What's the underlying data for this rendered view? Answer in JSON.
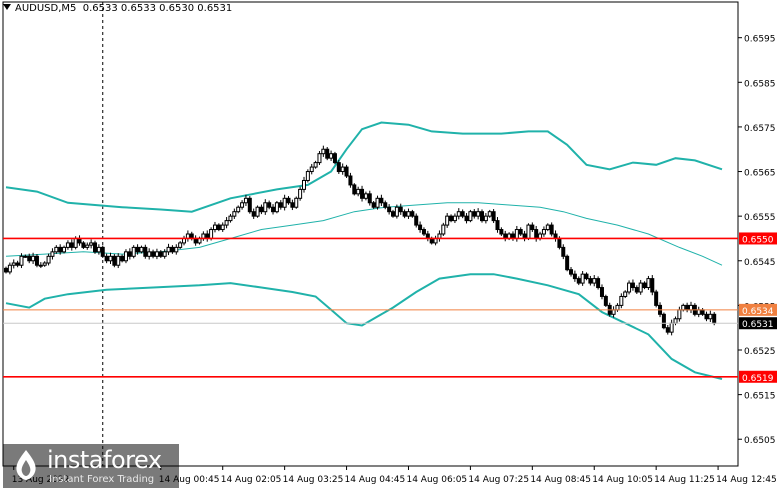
{
  "header": {
    "symbol": "AUDUSD,M5",
    "ohlc": "0.6533 0.6533 0.6530 0.6531"
  },
  "watermark": {
    "brand": "instaforex",
    "tagline": "Instant Forex Trading",
    "icon": "instaforex-logo-icon"
  },
  "colors": {
    "background": "#ffffff",
    "candle": "#000000",
    "bollinger": "#20b2aa",
    "level": "#ff0000",
    "bid_line": "#f08040",
    "grid": "#c8c8c8"
  },
  "chart_data": {
    "type": "candlestick",
    "timeframe": "M5",
    "ylim": [
      0.6499,
      0.6603
    ],
    "y_ticks": [
      "0.6595",
      "0.6585",
      "0.6575",
      "0.6565",
      "0.6555",
      "0.6545",
      "0.6535",
      "0.6525",
      "0.6515",
      "0.6505"
    ],
    "x_ticks": [
      {
        "i": 2,
        "label": "13 Aug 2022"
      },
      {
        "i": 40,
        "label": "14 Aug 00:45"
      },
      {
        "i": 56,
        "label": "14 Aug 02:05"
      },
      {
        "i": 72,
        "label": "14 Aug 03:25"
      },
      {
        "i": 88,
        "label": "14 Aug 04:45"
      },
      {
        "i": 104,
        "label": "14 Aug 06:05"
      },
      {
        "i": 120,
        "label": "14 Aug 07:25"
      },
      {
        "i": 136,
        "label": "14 Aug 08:45"
      },
      {
        "i": 152,
        "label": "14 Aug 10:05"
      },
      {
        "i": 168,
        "label": "14 Aug 11:25"
      },
      {
        "i": 184,
        "label": "14 Aug 12:45"
      }
    ],
    "levels": [
      {
        "value": 0.655,
        "label": "0.6550",
        "color": "#ff0000"
      },
      {
        "value": 0.6519,
        "label": "0.6519",
        "color": "#ff0000"
      },
      {
        "value": 0.6534,
        "label": "0.6534",
        "color": "#f08040"
      }
    ],
    "current_price": {
      "value": 0.6531,
      "label": "0.6531"
    },
    "session_separator_index": 25,
    "close": [
      0.65425,
      0.6544,
      0.65445,
      0.6544,
      0.6546,
      0.6546,
      0.6545,
      0.6546,
      0.6544,
      0.6544,
      0.65445,
      0.6546,
      0.6547,
      0.6548,
      0.6547,
      0.6548,
      0.6549,
      0.6548,
      0.655,
      0.6549,
      0.6548,
      0.65485,
      0.6549,
      0.6547,
      0.6548,
      0.6546,
      0.6545,
      0.6546,
      0.6544,
      0.6546,
      0.6545,
      0.6547,
      0.6546,
      0.6548,
      0.6547,
      0.6548,
      0.6546,
      0.6547,
      0.6546,
      0.6547,
      0.6546,
      0.6547,
      0.6548,
      0.6547,
      0.6548,
      0.6549,
      0.655,
      0.6551,
      0.655,
      0.6549,
      0.655,
      0.6551,
      0.655,
      0.6552,
      0.6553,
      0.6552,
      0.6553,
      0.6554,
      0.6555,
      0.6556,
      0.6557,
      0.6558,
      0.6559,
      0.6556,
      0.6555,
      0.6557,
      0.6556,
      0.6558,
      0.6557,
      0.6556,
      0.6558,
      0.6557,
      0.6559,
      0.6558,
      0.6557,
      0.6559,
      0.6561,
      0.6563,
      0.6565,
      0.6566,
      0.6567,
      0.6569,
      0.657,
      0.6568,
      0.6569,
      0.6567,
      0.6565,
      0.6566,
      0.6564,
      0.6562,
      0.656,
      0.6561,
      0.6559,
      0.656,
      0.6558,
      0.6557,
      0.6559,
      0.6558,
      0.6557,
      0.6556,
      0.6555,
      0.6557,
      0.6556,
      0.6555,
      0.6556,
      0.6555,
      0.6553,
      0.6552,
      0.6551,
      0.655,
      0.6549,
      0.655,
      0.6551,
      0.6553,
      0.6555,
      0.6554,
      0.6555,
      0.6556,
      0.6555,
      0.6554,
      0.6556,
      0.6555,
      0.6556,
      0.6554,
      0.6555,
      0.6556,
      0.6554,
      0.6552,
      0.6551,
      0.655,
      0.6551,
      0.655,
      0.6552,
      0.6551,
      0.655,
      0.6553,
      0.6552,
      0.655,
      0.6551,
      0.6552,
      0.6553,
      0.6551,
      0.655,
      0.6548,
      0.6546,
      0.6543,
      0.6542,
      0.6541,
      0.654,
      0.6542,
      0.6541,
      0.654,
      0.6541,
      0.6539,
      0.6537,
      0.6535,
      0.6533,
      0.6534,
      0.6535,
      0.6537,
      0.6538,
      0.654,
      0.6539,
      0.6538,
      0.654,
      0.6539,
      0.6541,
      0.6538,
      0.6535,
      0.6533,
      0.653,
      0.6529,
      0.6531,
      0.6532,
      0.6534,
      0.6535,
      0.6534,
      0.6535,
      0.6533,
      0.6534,
      0.6533,
      0.6532,
      0.6533,
      0.6531
    ],
    "bb_upper": [
      [
        0,
        0.65615
      ],
      [
        8,
        0.65605
      ],
      [
        16,
        0.6558
      ],
      [
        30,
        0.6557
      ],
      [
        40,
        0.65565
      ],
      [
        48,
        0.6556
      ],
      [
        58,
        0.6559
      ],
      [
        70,
        0.6561
      ],
      [
        78,
        0.6562
      ],
      [
        84,
        0.6565
      ],
      [
        88,
        0.657
      ],
      [
        92,
        0.65745
      ],
      [
        97,
        0.6576
      ],
      [
        104,
        0.65755
      ],
      [
        110,
        0.6574
      ],
      [
        118,
        0.65735
      ],
      [
        128,
        0.65735
      ],
      [
        135,
        0.6574
      ],
      [
        140,
        0.6574
      ],
      [
        145,
        0.6571
      ],
      [
        150,
        0.65665
      ],
      [
        156,
        0.65655
      ],
      [
        162,
        0.6567
      ],
      [
        168,
        0.65665
      ],
      [
        173,
        0.6568
      ],
      [
        178,
        0.65675
      ],
      [
        185,
        0.65655
      ]
    ],
    "bb_middle": [
      [
        0,
        0.6546
      ],
      [
        10,
        0.65465
      ],
      [
        20,
        0.6547
      ],
      [
        30,
        0.65465
      ],
      [
        40,
        0.6547
      ],
      [
        50,
        0.6548
      ],
      [
        58,
        0.655
      ],
      [
        66,
        0.6552
      ],
      [
        74,
        0.6553
      ],
      [
        82,
        0.6554
      ],
      [
        90,
        0.6556
      ],
      [
        98,
        0.6557
      ],
      [
        106,
        0.65575
      ],
      [
        114,
        0.6558
      ],
      [
        122,
        0.6558
      ],
      [
        130,
        0.65575
      ],
      [
        138,
        0.6557
      ],
      [
        144,
        0.6556
      ],
      [
        150,
        0.65545
      ],
      [
        158,
        0.6553
      ],
      [
        166,
        0.6551
      ],
      [
        174,
        0.6548
      ],
      [
        180,
        0.6546
      ],
      [
        185,
        0.6544
      ]
    ],
    "bb_lower": [
      [
        0,
        0.65355
      ],
      [
        6,
        0.65345
      ],
      [
        10,
        0.65365
      ],
      [
        16,
        0.65375
      ],
      [
        26,
        0.65385
      ],
      [
        38,
        0.6539
      ],
      [
        50,
        0.65395
      ],
      [
        58,
        0.654
      ],
      [
        66,
        0.6539
      ],
      [
        74,
        0.6538
      ],
      [
        80,
        0.6537
      ],
      [
        84,
        0.6534
      ],
      [
        88,
        0.6531
      ],
      [
        92,
        0.65305
      ],
      [
        96,
        0.65325
      ],
      [
        100,
        0.65345
      ],
      [
        106,
        0.6538
      ],
      [
        112,
        0.6541
      ],
      [
        120,
        0.6542
      ],
      [
        126,
        0.6542
      ],
      [
        132,
        0.6541
      ],
      [
        140,
        0.65395
      ],
      [
        148,
        0.65375
      ],
      [
        154,
        0.65335
      ],
      [
        160,
        0.6531
      ],
      [
        166,
        0.65285
      ],
      [
        172,
        0.6523
      ],
      [
        178,
        0.652
      ],
      [
        185,
        0.65185
      ]
    ]
  }
}
